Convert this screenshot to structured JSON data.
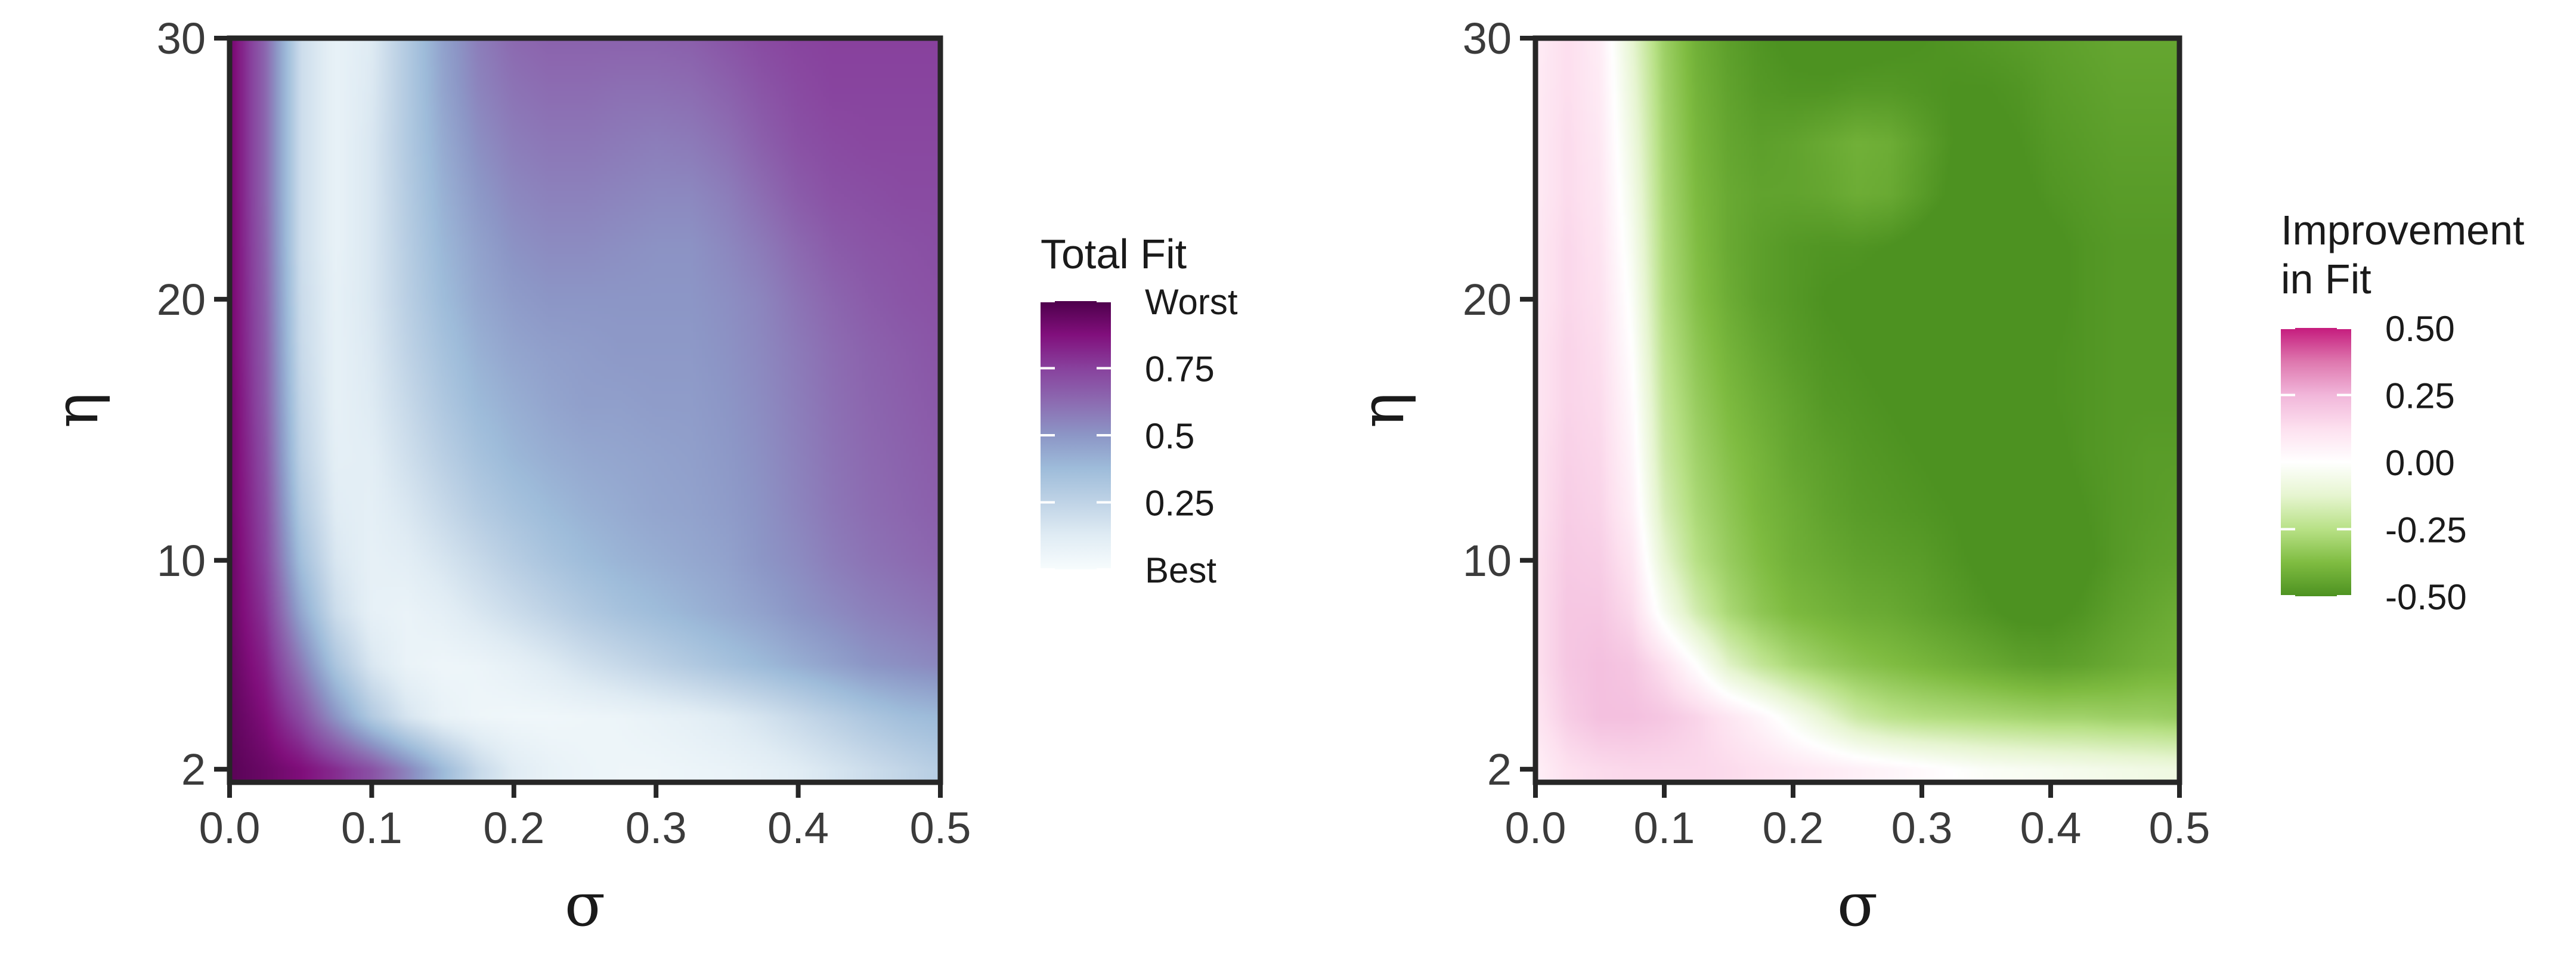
{
  "chart_data": [
    {
      "type": "heatmap",
      "title": "",
      "xlabel": "σ",
      "ylabel": "η",
      "xlim": [
        0,
        0.5
      ],
      "ylim": [
        1.5,
        30
      ],
      "x_ticks": [
        0,
        0.1,
        0.2,
        0.3,
        0.4,
        0.5
      ],
      "x_tick_labels": [
        "0.0",
        "0.1",
        "0.2",
        "0.3",
        "0.4",
        "0.5"
      ],
      "y_ticks": [
        2,
        10,
        20,
        30
      ],
      "y_tick_labels": [
        "2",
        "10",
        "20",
        "30"
      ],
      "grid": false,
      "legend": {
        "title": [
          "Total Fit"
        ],
        "position": "right",
        "range": [
          0,
          1
        ],
        "breaks": [
          1,
          0.75,
          0.5,
          0.25,
          0
        ],
        "labels": [
          "Worst",
          "0.75",
          "0.5",
          "0.25",
          "Best"
        ],
        "colors": [
          "#f7fcfd",
          "#e0ecf4",
          "#bfd3e6",
          "#9ebcda",
          "#8c96c6",
          "#8c6bb1",
          "#88419d",
          "#810f7c",
          "#4d004b"
        ]
      },
      "x": [
        0,
        0.025,
        0.05,
        0.075,
        0.1,
        0.125,
        0.15,
        0.175,
        0.2,
        0.225,
        0.25,
        0.275,
        0.3,
        0.325,
        0.35,
        0.375,
        0.4,
        0.425,
        0.45,
        0.475,
        0.5
      ],
      "y": [
        2,
        4,
        6,
        8,
        10,
        12,
        14,
        16,
        18,
        20,
        22,
        24,
        26,
        28,
        30
      ],
      "z": [
        [
          0.97,
          0.93,
          0.88,
          0.8,
          0.7,
          0.55,
          0.38,
          0.22,
          0.12,
          0.08,
          0.06,
          0.05,
          0.05,
          0.06,
          0.07,
          0.09,
          0.12,
          0.16,
          0.2,
          0.24,
          0.28
        ],
        [
          0.96,
          0.88,
          0.72,
          0.5,
          0.3,
          0.16,
          0.08,
          0.05,
          0.04,
          0.04,
          0.05,
          0.06,
          0.08,
          0.1,
          0.13,
          0.17,
          0.22,
          0.27,
          0.32,
          0.36,
          0.38
        ],
        [
          0.95,
          0.83,
          0.58,
          0.32,
          0.15,
          0.07,
          0.05,
          0.06,
          0.09,
          0.13,
          0.18,
          0.22,
          0.26,
          0.3,
          0.34,
          0.38,
          0.42,
          0.46,
          0.5,
          0.52,
          0.54
        ],
        [
          0.94,
          0.78,
          0.45,
          0.2,
          0.09,
          0.07,
          0.1,
          0.15,
          0.2,
          0.25,
          0.3,
          0.34,
          0.37,
          0.4,
          0.43,
          0.46,
          0.5,
          0.53,
          0.56,
          0.58,
          0.6
        ],
        [
          0.94,
          0.74,
          0.36,
          0.15,
          0.09,
          0.11,
          0.16,
          0.22,
          0.28,
          0.33,
          0.37,
          0.4,
          0.42,
          0.44,
          0.46,
          0.5,
          0.53,
          0.57,
          0.6,
          0.62,
          0.64
        ],
        [
          0.93,
          0.72,
          0.3,
          0.12,
          0.1,
          0.15,
          0.22,
          0.29,
          0.34,
          0.38,
          0.41,
          0.43,
          0.45,
          0.46,
          0.48,
          0.51,
          0.55,
          0.59,
          0.62,
          0.64,
          0.66
        ],
        [
          0.93,
          0.7,
          0.26,
          0.1,
          0.11,
          0.19,
          0.27,
          0.34,
          0.39,
          0.42,
          0.44,
          0.45,
          0.46,
          0.47,
          0.49,
          0.52,
          0.56,
          0.6,
          0.63,
          0.65,
          0.67
        ],
        [
          0.93,
          0.68,
          0.24,
          0.09,
          0.13,
          0.22,
          0.31,
          0.38,
          0.42,
          0.45,
          0.47,
          0.47,
          0.48,
          0.48,
          0.5,
          0.53,
          0.57,
          0.61,
          0.64,
          0.66,
          0.68
        ],
        [
          0.92,
          0.67,
          0.22,
          0.09,
          0.14,
          0.25,
          0.34,
          0.41,
          0.45,
          0.47,
          0.48,
          0.49,
          0.49,
          0.49,
          0.51,
          0.54,
          0.58,
          0.62,
          0.65,
          0.67,
          0.69
        ],
        [
          0.92,
          0.66,
          0.21,
          0.09,
          0.15,
          0.27,
          0.37,
          0.44,
          0.48,
          0.5,
          0.5,
          0.5,
          0.5,
          0.5,
          0.52,
          0.55,
          0.6,
          0.64,
          0.67,
          0.69,
          0.7
        ],
        [
          0.92,
          0.65,
          0.2,
          0.08,
          0.15,
          0.28,
          0.39,
          0.46,
          0.51,
          0.53,
          0.53,
          0.52,
          0.51,
          0.51,
          0.54,
          0.58,
          0.63,
          0.67,
          0.69,
          0.7,
          0.71
        ],
        [
          0.92,
          0.64,
          0.2,
          0.08,
          0.15,
          0.29,
          0.41,
          0.49,
          0.54,
          0.56,
          0.56,
          0.55,
          0.54,
          0.54,
          0.57,
          0.62,
          0.67,
          0.7,
          0.71,
          0.72,
          0.72
        ],
        [
          0.92,
          0.64,
          0.2,
          0.08,
          0.15,
          0.3,
          0.43,
          0.52,
          0.57,
          0.59,
          0.59,
          0.58,
          0.57,
          0.58,
          0.61,
          0.66,
          0.7,
          0.72,
          0.73,
          0.73,
          0.73
        ],
        [
          0.92,
          0.64,
          0.2,
          0.08,
          0.14,
          0.3,
          0.45,
          0.55,
          0.6,
          0.62,
          0.62,
          0.61,
          0.61,
          0.62,
          0.65,
          0.69,
          0.72,
          0.74,
          0.74,
          0.74,
          0.74
        ],
        [
          0.92,
          0.64,
          0.2,
          0.08,
          0.13,
          0.3,
          0.46,
          0.57,
          0.63,
          0.65,
          0.65,
          0.65,
          0.65,
          0.66,
          0.69,
          0.72,
          0.74,
          0.75,
          0.75,
          0.75,
          0.75
        ]
      ]
    },
    {
      "type": "heatmap",
      "title": "",
      "xlabel": "σ",
      "ylabel": "η",
      "xlim": [
        0,
        0.5
      ],
      "ylim": [
        1.5,
        30
      ],
      "x_ticks": [
        0,
        0.1,
        0.2,
        0.3,
        0.4,
        0.5
      ],
      "x_tick_labels": [
        "0.0",
        "0.1",
        "0.2",
        "0.3",
        "0.4",
        "0.5"
      ],
      "y_ticks": [
        2,
        10,
        20,
        30
      ],
      "y_tick_labels": [
        "2",
        "10",
        "20",
        "30"
      ],
      "grid": false,
      "legend": {
        "title": [
          "Improvement",
          "in Fit"
        ],
        "position": "right",
        "range": [
          -0.5,
          0.5
        ],
        "breaks": [
          0.5,
          0.25,
          0,
          -0.25,
          -0.5
        ],
        "labels": [
          "0.50",
          "0.25",
          "0.00",
          "-0.25",
          "-0.50"
        ],
        "colors": [
          "#4d9221",
          "#7fbc41",
          "#b8e186",
          "#e6f5d0",
          "#ffffff",
          "#fde0ef",
          "#f1b6da",
          "#de77ae",
          "#c51b7d"
        ]
      },
      "x": [
        0,
        0.025,
        0.05,
        0.075,
        0.1,
        0.125,
        0.15,
        0.175,
        0.2,
        0.225,
        0.25,
        0.275,
        0.3,
        0.325,
        0.35,
        0.375,
        0.4,
        0.425,
        0.45,
        0.475,
        0.5
      ],
      "y": [
        2,
        4,
        6,
        8,
        10,
        12,
        14,
        16,
        18,
        20,
        22,
        24,
        26,
        28,
        30
      ],
      "z": [
        [
          0.06,
          0.12,
          0.14,
          0.15,
          0.15,
          0.15,
          0.14,
          0.12,
          0.1,
          0.08,
          0.06,
          0.04,
          0.02,
          0.0,
          -0.02,
          -0.03,
          -0.04,
          -0.05,
          -0.06,
          -0.07,
          -0.08
        ],
        [
          0.1,
          0.18,
          0.22,
          0.22,
          0.2,
          0.16,
          0.1,
          0.04,
          -0.04,
          -0.12,
          -0.2,
          -0.24,
          -0.26,
          -0.27,
          -0.28,
          -0.29,
          -0.3,
          -0.3,
          -0.31,
          -0.31,
          -0.32
        ],
        [
          0.12,
          0.2,
          0.22,
          0.2,
          0.12,
          0.0,
          -0.14,
          -0.22,
          -0.28,
          -0.32,
          -0.35,
          -0.37,
          -0.39,
          -0.41,
          -0.43,
          -0.45,
          -0.46,
          -0.45,
          -0.43,
          -0.41,
          -0.4
        ],
        [
          0.12,
          0.2,
          0.2,
          0.14,
          -0.04,
          -0.18,
          -0.28,
          -0.34,
          -0.38,
          -0.4,
          -0.42,
          -0.43,
          -0.45,
          -0.47,
          -0.49,
          -0.51,
          -0.51,
          -0.49,
          -0.46,
          -0.44,
          -0.42
        ],
        [
          0.12,
          0.19,
          0.18,
          0.1,
          -0.12,
          -0.25,
          -0.32,
          -0.37,
          -0.41,
          -0.43,
          -0.45,
          -0.46,
          -0.47,
          -0.49,
          -0.51,
          -0.53,
          -0.53,
          -0.51,
          -0.48,
          -0.46,
          -0.45
        ],
        [
          0.11,
          0.18,
          0.16,
          0.06,
          -0.17,
          -0.28,
          -0.34,
          -0.39,
          -0.42,
          -0.45,
          -0.47,
          -0.48,
          -0.49,
          -0.5,
          -0.52,
          -0.53,
          -0.52,
          -0.5,
          -0.48,
          -0.47,
          -0.46
        ],
        [
          0.11,
          0.17,
          0.15,
          0.04,
          -0.2,
          -0.3,
          -0.36,
          -0.4,
          -0.44,
          -0.46,
          -0.48,
          -0.49,
          -0.5,
          -0.51,
          -0.52,
          -0.52,
          -0.51,
          -0.49,
          -0.48,
          -0.47,
          -0.47
        ],
        [
          0.1,
          0.16,
          0.14,
          0.02,
          -0.22,
          -0.32,
          -0.38,
          -0.42,
          -0.45,
          -0.48,
          -0.49,
          -0.5,
          -0.51,
          -0.52,
          -0.52,
          -0.51,
          -0.5,
          -0.49,
          -0.48,
          -0.48,
          -0.48
        ],
        [
          0.1,
          0.16,
          0.13,
          0.0,
          -0.24,
          -0.34,
          -0.4,
          -0.44,
          -0.47,
          -0.49,
          -0.5,
          -0.51,
          -0.52,
          -0.53,
          -0.53,
          -0.52,
          -0.5,
          -0.49,
          -0.48,
          -0.48,
          -0.48
        ],
        [
          0.09,
          0.15,
          0.12,
          -0.02,
          -0.26,
          -0.36,
          -0.42,
          -0.46,
          -0.48,
          -0.5,
          -0.51,
          -0.52,
          -0.53,
          -0.54,
          -0.54,
          -0.53,
          -0.51,
          -0.49,
          -0.48,
          -0.48,
          -0.48
        ],
        [
          0.09,
          0.15,
          0.11,
          -0.04,
          -0.27,
          -0.37,
          -0.43,
          -0.46,
          -0.48,
          -0.49,
          -0.49,
          -0.5,
          -0.52,
          -0.54,
          -0.54,
          -0.53,
          -0.51,
          -0.49,
          -0.48,
          -0.48,
          -0.48
        ],
        [
          0.08,
          0.14,
          0.1,
          -0.06,
          -0.28,
          -0.38,
          -0.43,
          -0.45,
          -0.45,
          -0.44,
          -0.42,
          -0.43,
          -0.47,
          -0.51,
          -0.52,
          -0.51,
          -0.49,
          -0.48,
          -0.47,
          -0.47,
          -0.47
        ],
        [
          0.08,
          0.14,
          0.09,
          -0.08,
          -0.29,
          -0.39,
          -0.44,
          -0.46,
          -0.45,
          -0.43,
          -0.41,
          -0.42,
          -0.46,
          -0.5,
          -0.51,
          -0.5,
          -0.48,
          -0.47,
          -0.46,
          -0.46,
          -0.46
        ],
        [
          0.08,
          0.13,
          0.08,
          -0.1,
          -0.3,
          -0.4,
          -0.45,
          -0.48,
          -0.49,
          -0.49,
          -0.48,
          -0.48,
          -0.49,
          -0.5,
          -0.5,
          -0.49,
          -0.47,
          -0.46,
          -0.45,
          -0.45,
          -0.45
        ],
        [
          0.07,
          0.13,
          0.07,
          -0.12,
          -0.31,
          -0.41,
          -0.46,
          -0.49,
          -0.51,
          -0.52,
          -0.52,
          -0.51,
          -0.5,
          -0.49,
          -0.48,
          -0.47,
          -0.46,
          -0.45,
          -0.44,
          -0.44,
          -0.44
        ]
      ]
    }
  ]
}
